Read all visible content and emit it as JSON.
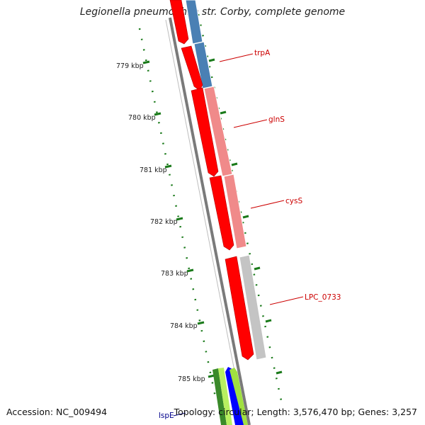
{
  "title": "Legionella pneumophila str. Corby, complete genome",
  "accession": "Accession: NC_009494",
  "topology": "Topology: circular; Length: 3,576,470 bp; Genes: 3,257",
  "colors": {
    "cds_red": "#ff0000",
    "trpA_blue": "#4a80b4",
    "glnS_pink": "#f08a8a",
    "lpc_grey": "#c4c4c4",
    "tick_green": "#1a7a1a",
    "label_red": "#cc0000",
    "label_blue": "#00008b",
    "backbone": "#7a7a7a"
  },
  "scale_labels": [
    {
      "text": "779 kbp"
    },
    {
      "text": "780 kbp"
    },
    {
      "text": "781 kbp"
    },
    {
      "text": "782 kbp"
    },
    {
      "text": "783 kbp"
    },
    {
      "text": "784 kbp"
    },
    {
      "text": "785 kbp"
    }
  ],
  "gene_labels": [
    {
      "text": "trpA"
    },
    {
      "text": "glnS"
    },
    {
      "text": "cysS"
    },
    {
      "text": "LPC_0733"
    },
    {
      "text": "lspE"
    }
  ]
}
